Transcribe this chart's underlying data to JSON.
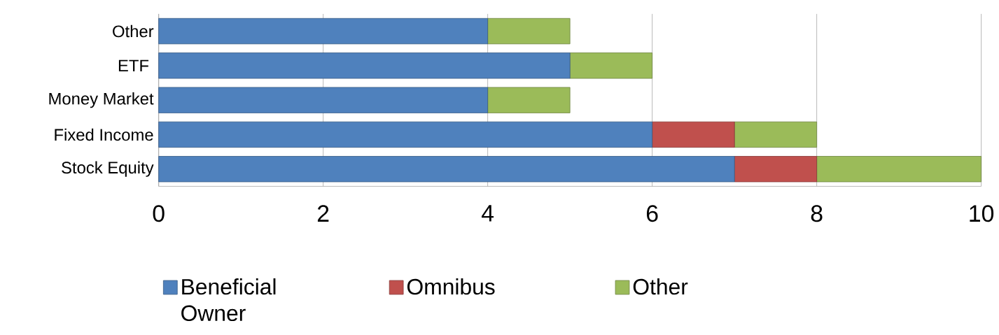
{
  "chart_data": {
    "type": "bar",
    "orientation": "horizontal",
    "stacked": true,
    "categories": [
      "Other",
      "ETF ",
      "Money Market",
      "Fixed Income",
      "Stock Equity"
    ],
    "series": [
      {
        "name": "Beneficial Owner",
        "color": "#4f81bd",
        "values": [
          4,
          5,
          4,
          6,
          7
        ]
      },
      {
        "name": "Omnibus",
        "color": "#c0504d",
        "values": [
          0,
          0,
          0,
          1,
          1
        ]
      },
      {
        "name": "Other",
        "color": "#9bbb59",
        "values": [
          1,
          1,
          1,
          1,
          2
        ]
      }
    ],
    "xlim": [
      0,
      10
    ],
    "xticks": [
      0,
      2,
      4,
      6,
      8,
      10
    ],
    "grid": "x",
    "legend": "bottom"
  }
}
